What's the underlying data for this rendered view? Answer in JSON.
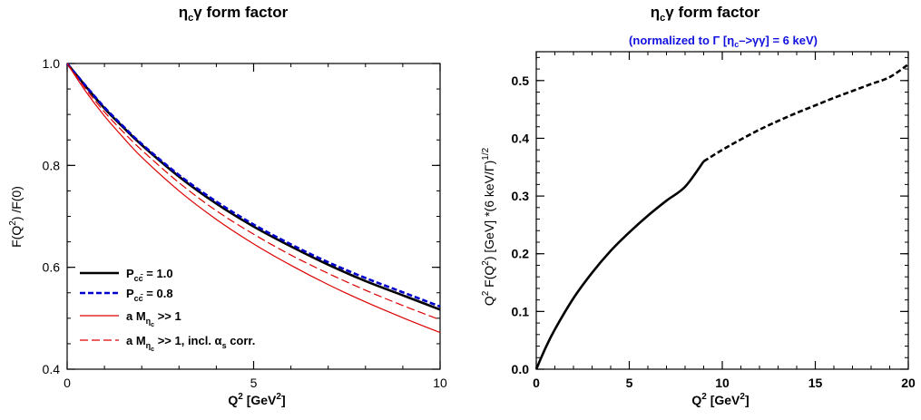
{
  "colors": {
    "black": "#000000",
    "blue": "#0000cc",
    "red": "#dd0000",
    "subtitle": "#1010e0"
  },
  "chart_data": [
    {
      "type": "line",
      "title": "η_cγ form factor",
      "xlabel": "Q² [GeV²]",
      "ylabel": "F(Q²) /F(0)",
      "xlim": [
        0,
        10
      ],
      "ylim": [
        0.4,
        1.0
      ],
      "xticks": [
        "0",
        "5",
        "10"
      ],
      "yticks": [
        "0.4",
        "0.6",
        "0.8",
        "1.0"
      ],
      "legend_position": "bottom-left",
      "series": [
        {
          "name": "P_cc̄ = 1.0",
          "style": "solid-thick",
          "color": "#000000",
          "x": [
            0,
            0.5,
            1,
            1.5,
            2,
            3,
            4,
            5,
            6,
            7,
            8,
            9,
            10
          ],
          "y": [
            1.0,
            0.955,
            0.912,
            0.875,
            0.84,
            0.778,
            0.725,
            0.68,
            0.641,
            0.605,
            0.573,
            0.545,
            0.517
          ]
        },
        {
          "name": "P_cc̄ = 0.8",
          "style": "dashed-thick",
          "color": "#0000cc",
          "x": [
            0,
            0.5,
            1,
            1.5,
            2,
            3,
            4,
            5,
            6,
            7,
            8,
            9,
            10
          ],
          "y": [
            1.0,
            0.956,
            0.914,
            0.877,
            0.842,
            0.781,
            0.729,
            0.684,
            0.645,
            0.61,
            0.579,
            0.551,
            0.523
          ]
        },
        {
          "name": "a M_ηc >> 1",
          "style": "solid-thin",
          "color": "#dd0000",
          "x": [
            0,
            0.5,
            1,
            1.5,
            2,
            3,
            4,
            5,
            6,
            7,
            8,
            9,
            10
          ],
          "y": [
            1.0,
            0.945,
            0.897,
            0.855,
            0.816,
            0.75,
            0.694,
            0.646,
            0.604,
            0.566,
            0.532,
            0.501,
            0.472
          ]
        },
        {
          "name": "a M_ηc >> 1, incl. α_s corr.",
          "style": "dashed-thin",
          "color": "#dd0000",
          "x": [
            0,
            0.5,
            1,
            1.5,
            2,
            3,
            4,
            5,
            6,
            7,
            8,
            9,
            10
          ],
          "y": [
            1.0,
            0.95,
            0.905,
            0.866,
            0.83,
            0.766,
            0.711,
            0.665,
            0.624,
            0.588,
            0.555,
            0.525,
            0.497
          ]
        }
      ]
    },
    {
      "type": "line",
      "title": "η_cγ form factor",
      "subtitle": "(normalized to Γ [η_c–>γγ] = 6 keV)",
      "xlabel": "Q² [GeV²]",
      "ylabel": "Q² F(Q²) [GeV] *(6 keV/Γ)^1/2",
      "xlim": [
        0,
        20
      ],
      "ylim": [
        0,
        0.55
      ],
      "xticks": [
        "0",
        "5",
        "10",
        "15",
        "20"
      ],
      "yticks": [
        "0.0",
        "0.1",
        "0.2",
        "0.3",
        "0.4",
        "0.5"
      ],
      "series": [
        {
          "name": "",
          "style": "solid-thick",
          "color": "#000000",
          "x": [
            0,
            0.5,
            1,
            2,
            3,
            4,
            5,
            6,
            7,
            8,
            9
          ],
          "y": [
            0.0,
            0.037,
            0.069,
            0.123,
            0.167,
            0.205,
            0.237,
            0.266,
            0.292,
            0.316,
            0.36
          ]
        },
        {
          "name": "",
          "style": "dashed-thick",
          "color": "#000000",
          "x": [
            9,
            10,
            11,
            12,
            13,
            14,
            15,
            16,
            17,
            18,
            19,
            20
          ],
          "y": [
            0.36,
            0.38,
            0.398,
            0.415,
            0.43,
            0.444,
            0.457,
            0.47,
            0.482,
            0.494,
            0.506,
            0.528
          ]
        }
      ]
    }
  ]
}
